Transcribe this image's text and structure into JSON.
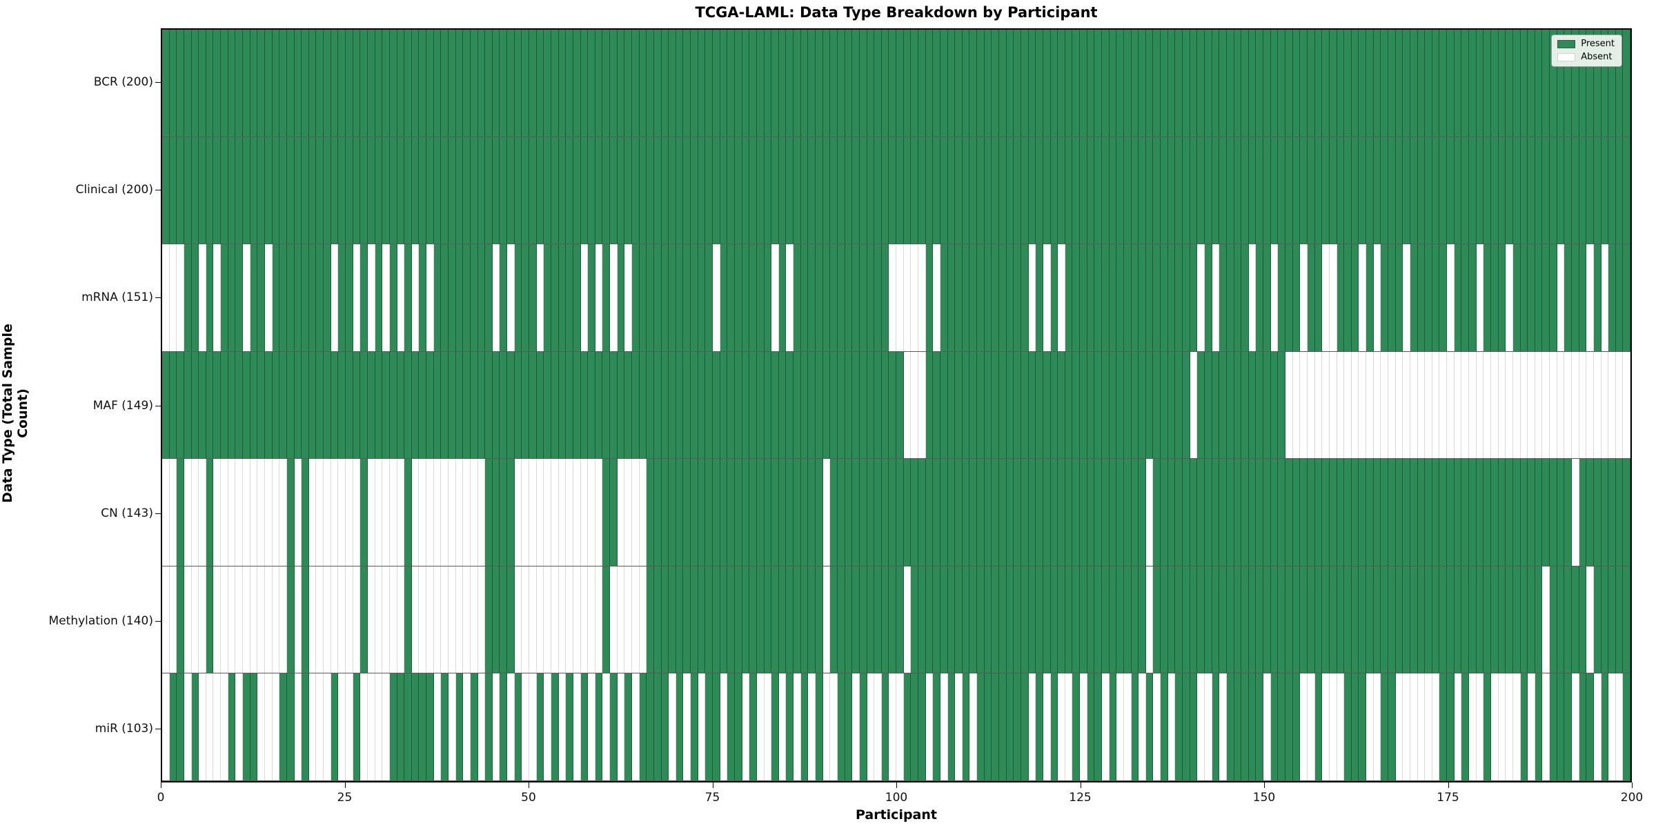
{
  "title": "TCGA-LAML: Data Type Breakdown by Participant",
  "xlabel": "Participant",
  "ylabel": "Data Type (Total Sample Count)",
  "legend": {
    "present_label": "Present",
    "absent_label": "Absent"
  },
  "colors": {
    "present": "#2e8b57",
    "absent": "#ffffff"
  },
  "chart_data": {
    "type": "heatmap",
    "title": "TCGA-LAML: Data Type Breakdown by Participant",
    "xlabel": "Participant",
    "ylabel": "Data Type (Total Sample Count)",
    "x_range": [
      0,
      200
    ],
    "x_ticks": [
      0,
      25,
      50,
      75,
      100,
      125,
      150,
      175,
      200
    ],
    "n_participants": 200,
    "legend_position": "upper right",
    "value_encoding": {
      "1": "Present",
      "0": "Absent"
    },
    "rows": [
      {
        "name": "BCR",
        "label": "BCR (200)",
        "present_count": 200,
        "pattern": "11111111111111111111111111111111111111111111111111111111111111111111111111111111111111111111111111111111111111111111111111111111111111111111111111111111111111111111111111111111111111111111111111111111"
      },
      {
        "name": "Clinical",
        "label": "Clinical (200)",
        "present_count": 200,
        "pattern": "11111111111111111111111111111111111111111111111111111111111111111111111111111111111111111111111111111111111111111111111111111111111111111111111111111111111111111111111111111111111111111111111111111111"
      },
      {
        "name": "mRNA",
        "label": "mRNA (151)",
        "present_count": 151,
        "pattern": "00011010111011011111111011010101010101111111101011101111101010101111111111101111111010111111111111100000101111111111110101011111111111111111101011110110111011001110101110111110111011101111110111010111"
      },
      {
        "name": "MAF",
        "label": "MAF (149)",
        "present_count": 149,
        "pattern": "11111111111111111111111111111111111111111111111111111111111111111111111111111111111111111111111111111000111111111111111111111111111111111111011111111111100000000000000000000000000000000000000000000000"
      },
      {
        "name": "CN",
        "label": "CN (143)",
        "present_count": 143,
        "pattern": "00100010000000000101000000010000010000000000111100000000000011000011111111111111111111111101111111111111111111111111111111111111111111011111111111111111111111111111111111111111111111111111111101111111"
      },
      {
        "name": "Methylation",
        "label": "Methylation (140)",
        "present_count": 140,
        "pattern": "00100010000000000101000000010000010000000000111100000000000010000011111111111111111111111101111111111011111111111111111111111111111111011111111111111111111111111111111111111111111111111111011111011111"
      },
      {
        "name": "miR",
        "label": "miR (103)",
        "present_count": 103,
        "pattern": "01101000010110001101000100100001111110101010101010010101010101010111101010110110100101010100110100100111010101011111110101001011010010101011100101111101111001000111001100000011010010000101011101101001"
      }
    ]
  }
}
